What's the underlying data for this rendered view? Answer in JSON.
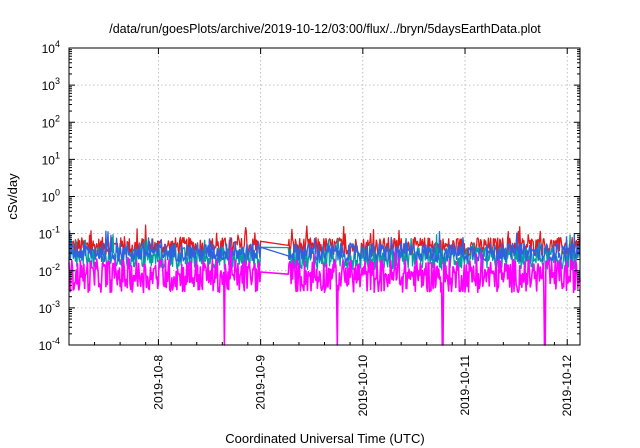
{
  "chart_data": {
    "type": "line",
    "title": "/data/run/goesPlots/archive/2019-10-12/03:00/flux/../bryn/5daysEarthData.plot",
    "xlabel": "Coordinated Universal Time (UTC)",
    "ylabel": "cSv/day",
    "yscale": "log",
    "ylim": [
      0.0001,
      10000
    ],
    "xlim": [
      "2019-10-07 03:00",
      "2019-10-12 03:00"
    ],
    "grid": true,
    "legend": "none",
    "y_ticks": [
      {
        "value": 0.0001,
        "base": "10",
        "exp": "-4"
      },
      {
        "value": 0.001,
        "base": "10",
        "exp": "-3"
      },
      {
        "value": 0.01,
        "base": "10",
        "exp": "-2"
      },
      {
        "value": 0.1,
        "base": "10",
        "exp": "-1"
      },
      {
        "value": 1,
        "base": "10",
        "exp": "0"
      },
      {
        "value": 10,
        "base": "10",
        "exp": "1"
      },
      {
        "value": 100,
        "base": "10",
        "exp": "2"
      },
      {
        "value": 1000,
        "base": "10",
        "exp": "3"
      },
      {
        "value": 10000,
        "base": "10",
        "exp": "4"
      }
    ],
    "x_ticks": [
      "2019-10-8",
      "2019-10-9",
      "2019-10-10",
      "2019-10-11",
      "2019-10-12"
    ],
    "series": [
      {
        "color": "#e41a1c",
        "base": 0.05,
        "spread": 0.5,
        "gaps": [
          [
            "2019-10-09 00:00",
            "2019-10-09 06:30"
          ]
        ],
        "dips": []
      },
      {
        "color": "#00a0a0",
        "base": 0.025,
        "spread": 0.6,
        "gaps": [
          [
            "2019-10-09 00:00",
            "2019-10-09 06:30"
          ]
        ],
        "dips": []
      },
      {
        "color": "#3060e0",
        "base": 0.035,
        "spread": 0.5,
        "gaps": [
          [
            "2019-10-09 00:00",
            "2019-10-09 06:30"
          ]
        ],
        "dips": []
      },
      {
        "color": "#ff00ff",
        "base": 0.009,
        "spread": 0.9,
        "gaps": [
          [
            "2019-10-09 00:00",
            "2019-10-09 06:30"
          ]
        ],
        "dips": [
          "2019-10-08 15:30",
          "2019-10-09 18:00",
          "2019-10-10 18:45",
          "2019-10-11 18:45"
        ]
      }
    ]
  }
}
